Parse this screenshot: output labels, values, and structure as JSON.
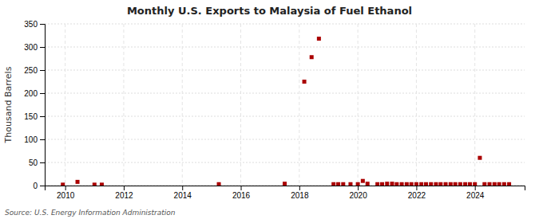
{
  "chart_data": {
    "type": "scatter",
    "title": "Monthly U.S. Exports to Malaysia of Fuel Ethanol",
    "y_label": "Thousand Barrels",
    "annotations": [
      "Source: U.S. Energy Information Administration"
    ],
    "x": [
      2009.92,
      2010.42,
      2011.0,
      2011.25,
      2015.25,
      2017.5,
      2018.17,
      2018.42,
      2018.67,
      2019.17,
      2019.33,
      2019.5,
      2019.75,
      2020.0,
      2020.17,
      2020.33,
      2020.67,
      2020.83,
      2021.0,
      2021.17,
      2021.33,
      2021.5,
      2021.67,
      2021.83,
      2022.0,
      2022.17,
      2022.33,
      2022.5,
      2022.67,
      2022.83,
      2023.0,
      2023.17,
      2023.33,
      2023.5,
      2023.67,
      2023.83,
      2024.0,
      2024.17,
      2024.33,
      2024.5,
      2024.67,
      2024.83,
      2025.0,
      2025.17
    ],
    "values": [
      2,
      8,
      2,
      2,
      3,
      4,
      225,
      278,
      318,
      3,
      3,
      3,
      3,
      3,
      10,
      4,
      3,
      3,
      4,
      4,
      3,
      3,
      3,
      3,
      3,
      3,
      3,
      3,
      3,
      3,
      3,
      3,
      3,
      3,
      3,
      3,
      3,
      60,
      3,
      3,
      3,
      3,
      3,
      3
    ],
    "color": "#aa0000",
    "marker": "square",
    "xlim": [
      2009.3,
      2025.7
    ],
    "xticks": [
      2010,
      2012,
      2014,
      2016,
      2018,
      2020,
      2022,
      2024
    ],
    "ylim": [
      0,
      350
    ],
    "yticks": [
      0,
      50,
      100,
      150,
      200,
      250,
      300,
      350
    ],
    "grid": true
  }
}
